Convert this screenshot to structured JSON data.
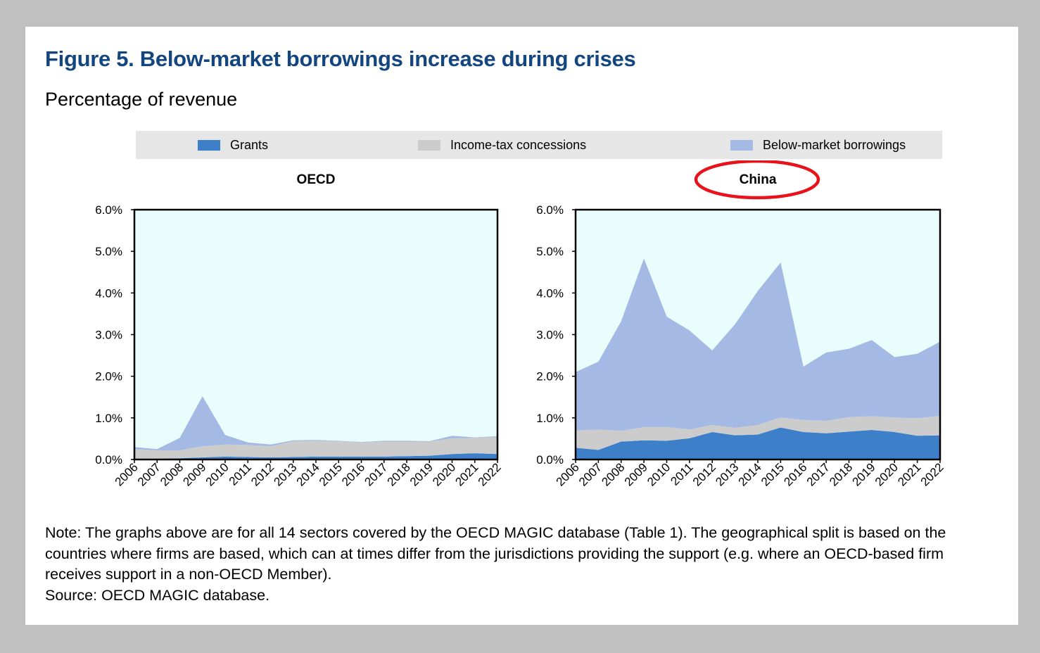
{
  "figure": {
    "title": "Figure 5. Below-market borrowings increase during crises",
    "subtitle": "Percentage of revenue",
    "note_lines": [
      "Note: The graphs above are for all 14 sectors covered by the OECD MAGIC database (Table 1). The geographical split is based on the",
      "countries where firms are based, which can at times differ from the jurisdictions providing the support (e.g. where an OECD-based firm",
      "receives support in a non-OECD Member)."
    ],
    "source": "Source: OECD MAGIC database."
  },
  "legend": [
    {
      "label": "Grants",
      "color": "#3d7fc9"
    },
    {
      "label": "Income-tax concessions",
      "color": "#cccccc"
    },
    {
      "label": "Below-market borrowings",
      "color": "#a4b9e4"
    }
  ],
  "colors": {
    "plot_background": "#eafdfd",
    "highlight_circle": "#e8121b"
  },
  "chart_data": [
    {
      "type": "area",
      "stacked": true,
      "title": "OECD",
      "x": [
        "2006",
        "2007",
        "2008",
        "2009",
        "2010",
        "2011",
        "2012",
        "2013",
        "2014",
        "2015",
        "2016",
        "2017",
        "2018",
        "2019",
        "2020",
        "2021",
        "2022"
      ],
      "y_ticks": [
        "0.0%",
        "1.0%",
        "2.0%",
        "3.0%",
        "4.0%",
        "5.0%",
        "6.0%"
      ],
      "ylim": [
        0,
        6
      ],
      "series": [
        {
          "name": "Grants",
          "values": [
            0.02,
            0.02,
            0.03,
            0.05,
            0.07,
            0.06,
            0.05,
            0.06,
            0.07,
            0.07,
            0.07,
            0.07,
            0.08,
            0.09,
            0.13,
            0.15,
            0.13
          ]
        },
        {
          "name": "Income-tax concessions",
          "values": [
            0.23,
            0.2,
            0.19,
            0.27,
            0.29,
            0.29,
            0.27,
            0.38,
            0.38,
            0.37,
            0.34,
            0.36,
            0.35,
            0.34,
            0.38,
            0.37,
            0.41
          ]
        },
        {
          "name": "Below-market borrowings",
          "values": [
            0.05,
            0.03,
            0.3,
            1.2,
            0.23,
            0.06,
            0.04,
            0.02,
            0.02,
            0.01,
            0.01,
            0.02,
            0.02,
            0.01,
            0.06,
            0.01,
            0.02
          ]
        }
      ],
      "highlight": false
    },
    {
      "type": "area",
      "stacked": true,
      "title": "China",
      "x": [
        "2006",
        "2007",
        "2008",
        "2009",
        "2010",
        "2011",
        "2012",
        "2013",
        "2014",
        "2015",
        "2016",
        "2017",
        "2018",
        "2019",
        "2020",
        "2021",
        "2022"
      ],
      "y_ticks": [
        "0.0%",
        "1.0%",
        "2.0%",
        "3.0%",
        "4.0%",
        "5.0%",
        "6.0%"
      ],
      "ylim": [
        0,
        6
      ],
      "series": [
        {
          "name": "Grants",
          "values": [
            0.28,
            0.23,
            0.43,
            0.46,
            0.45,
            0.51,
            0.66,
            0.58,
            0.6,
            0.77,
            0.66,
            0.63,
            0.67,
            0.71,
            0.66,
            0.57,
            0.58
          ]
        },
        {
          "name": "Income-tax concessions",
          "values": [
            0.42,
            0.49,
            0.26,
            0.32,
            0.33,
            0.21,
            0.17,
            0.18,
            0.23,
            0.24,
            0.29,
            0.3,
            0.35,
            0.33,
            0.35,
            0.42,
            0.47
          ]
        },
        {
          "name": "Below-market borrowings",
          "values": [
            1.4,
            1.63,
            2.63,
            4.05,
            2.65,
            2.38,
            1.79,
            2.49,
            3.22,
            3.72,
            1.28,
            1.64,
            1.64,
            1.83,
            1.45,
            1.55,
            1.78
          ]
        }
      ],
      "highlight": true
    }
  ]
}
